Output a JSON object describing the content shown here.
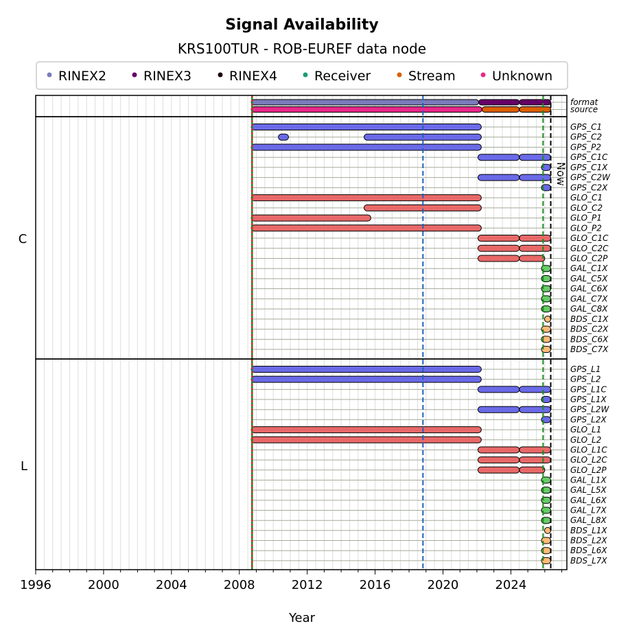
{
  "chart_data": {
    "type": "timeline",
    "title": "Signal Availability",
    "subtitle": "KRS100TUR - ROB-EUREF data node",
    "xlabel": "Year",
    "xlim": [
      1996,
      2027.3
    ],
    "xticks": [
      1996,
      2000,
      2004,
      2008,
      2012,
      2016,
      2020,
      2024
    ],
    "legend": {
      "placement": "top",
      "entries": [
        {
          "label": "RINEX2",
          "color": "#7b7bbb"
        },
        {
          "label": "RINEX3",
          "color": "#660066"
        },
        {
          "label": "RINEX4",
          "color": "#1a0010"
        },
        {
          "label": "Receiver",
          "color": "#1b9e77"
        },
        {
          "label": "Stream",
          "color": "#d95f02"
        },
        {
          "label": "Unknown",
          "color": "#e7298a"
        }
      ]
    },
    "vlines": [
      {
        "x": 2008.75,
        "color": "#d62728",
        "style": "dotted-red-green"
      },
      {
        "x": 2018.82,
        "color": "#1f5fbf",
        "style": "dashed"
      },
      {
        "x": 2025.9,
        "color": "#1a8a1a",
        "style": "dashed"
      },
      {
        "x": 2026.35,
        "color": "#000000",
        "style": "dashed",
        "label": "Now"
      }
    ],
    "meta_rows": [
      {
        "name": "format",
        "segments": [
          [
            2008.7,
            2022.1,
            "#7b7bbb"
          ],
          [
            2022.1,
            2024.5,
            "#660066"
          ],
          [
            2024.5,
            2026.35,
            "#660066"
          ]
        ]
      },
      {
        "name": "source",
        "segments": [
          [
            2008.7,
            2022.3,
            "#e7298a"
          ],
          [
            2022.3,
            2024.5,
            "#d95f02"
          ],
          [
            2024.5,
            2026.35,
            "#d95f02"
          ]
        ]
      }
    ],
    "panels": [
      {
        "name": "C",
        "rows": [
          {
            "name": "GPS_C1",
            "segments": [
              [
                2008.7,
                2022.26
              ]
            ]
          },
          {
            "name": "GPS_C2",
            "segments": [
              [
                2010.3,
                2010.9
              ],
              [
                2015.35,
                2022.26
              ]
            ]
          },
          {
            "name": "GPS_P2",
            "segments": [
              [
                2008.7,
                2022.26
              ]
            ]
          },
          {
            "name": "GPS_C1C",
            "segments": [
              [
                2022.06,
                2024.5
              ],
              [
                2024.5,
                2026.35
              ]
            ]
          },
          {
            "name": "GPS_C1X",
            "segments": [
              [
                2025.8,
                2026.35
              ]
            ]
          },
          {
            "name": "GPS_C2W",
            "segments": [
              [
                2022.06,
                2024.5
              ],
              [
                2024.5,
                2026.35
              ]
            ]
          },
          {
            "name": "GPS_C2X",
            "segments": [
              [
                2025.8,
                2026.35
              ]
            ]
          },
          {
            "name": "GLO_C1",
            "segments": [
              [
                2008.7,
                2022.26
              ]
            ]
          },
          {
            "name": "GLO_C2",
            "segments": [
              [
                2015.35,
                2022.26
              ]
            ]
          },
          {
            "name": "GLO_P1",
            "segments": [
              [
                2008.7,
                2015.75
              ]
            ]
          },
          {
            "name": "GLO_P2",
            "segments": [
              [
                2008.7,
                2022.26
              ]
            ]
          },
          {
            "name": "GLO_C1C",
            "segments": [
              [
                2022.06,
                2024.5
              ],
              [
                2024.5,
                2026.35
              ]
            ]
          },
          {
            "name": "GLO_C2C",
            "segments": [
              [
                2022.06,
                2024.5
              ],
              [
                2024.5,
                2026.35
              ]
            ]
          },
          {
            "name": "GLO_C2P",
            "segments": [
              [
                2022.06,
                2024.5
              ],
              [
                2024.5,
                2026.0
              ]
            ]
          },
          {
            "name": "GAL_C1X",
            "segments": [
              [
                2025.8,
                2026.35
              ]
            ]
          },
          {
            "name": "GAL_C5X",
            "segments": [
              [
                2025.8,
                2026.35
              ]
            ]
          },
          {
            "name": "GAL_C6X",
            "segments": [
              [
                2025.8,
                2026.35
              ]
            ]
          },
          {
            "name": "GAL_C7X",
            "segments": [
              [
                2025.8,
                2026.35
              ]
            ]
          },
          {
            "name": "GAL_C8X",
            "segments": [
              [
                2025.8,
                2026.35
              ]
            ]
          },
          {
            "name": "BDS_C1X",
            "segments": [
              [
                2026.15,
                2026.35
              ]
            ]
          },
          {
            "name": "BDS_C2X",
            "segments": [
              [
                2025.8,
                2026.35
              ]
            ]
          },
          {
            "name": "BDS_C6X",
            "segments": [
              [
                2025.8,
                2026.35
              ]
            ]
          },
          {
            "name": "BDS_C7X",
            "segments": [
              [
                2025.8,
                2026.35
              ]
            ]
          }
        ]
      },
      {
        "name": "L",
        "rows": [
          {
            "name": "GPS_L1",
            "segments": [
              [
                2008.7,
                2022.26
              ]
            ]
          },
          {
            "name": "GPS_L2",
            "segments": [
              [
                2008.7,
                2022.26
              ]
            ]
          },
          {
            "name": "GPS_L1C",
            "segments": [
              [
                2022.06,
                2024.5
              ],
              [
                2024.5,
                2026.35
              ]
            ]
          },
          {
            "name": "GPS_L1X",
            "segments": [
              [
                2025.8,
                2026.35
              ]
            ]
          },
          {
            "name": "GPS_L2W",
            "segments": [
              [
                2022.06,
                2024.5
              ],
              [
                2024.5,
                2026.35
              ]
            ]
          },
          {
            "name": "GPS_L2X",
            "segments": [
              [
                2025.8,
                2026.35
              ]
            ]
          },
          {
            "name": "GLO_L1",
            "segments": [
              [
                2008.7,
                2022.26
              ]
            ]
          },
          {
            "name": "GLO_L2",
            "segments": [
              [
                2008.7,
                2022.26
              ]
            ]
          },
          {
            "name": "GLO_L1C",
            "segments": [
              [
                2022.06,
                2024.5
              ],
              [
                2024.5,
                2026.35
              ]
            ]
          },
          {
            "name": "GLO_L2C",
            "segments": [
              [
                2022.06,
                2024.5
              ],
              [
                2024.5,
                2026.35
              ]
            ]
          },
          {
            "name": "GLO_L2P",
            "segments": [
              [
                2022.06,
                2024.5
              ],
              [
                2024.5,
                2026.0
              ]
            ]
          },
          {
            "name": "GAL_L1X",
            "segments": [
              [
                2025.8,
                2026.35
              ]
            ]
          },
          {
            "name": "GAL_L5X",
            "segments": [
              [
                2025.8,
                2026.35
              ]
            ]
          },
          {
            "name": "GAL_L6X",
            "segments": [
              [
                2025.8,
                2026.35
              ]
            ]
          },
          {
            "name": "GAL_L7X",
            "segments": [
              [
                2025.8,
                2026.35
              ]
            ]
          },
          {
            "name": "GAL_L8X",
            "segments": [
              [
                2025.8,
                2026.35
              ]
            ]
          },
          {
            "name": "BDS_L1X",
            "segments": [
              [
                2026.15,
                2026.35
              ]
            ]
          },
          {
            "name": "BDS_L2X",
            "segments": [
              [
                2025.8,
                2026.35
              ]
            ]
          },
          {
            "name": "BDS_L6X",
            "segments": [
              [
                2025.8,
                2026.35
              ]
            ]
          },
          {
            "name": "BDS_L7X",
            "segments": [
              [
                2025.8,
                2026.35
              ]
            ]
          }
        ]
      }
    ],
    "constellation_colors": {
      "GPS": "#6a6ae8",
      "GLO": "#e86868",
      "GAL": "#66cc66",
      "BDS": "#ffbb77"
    }
  }
}
